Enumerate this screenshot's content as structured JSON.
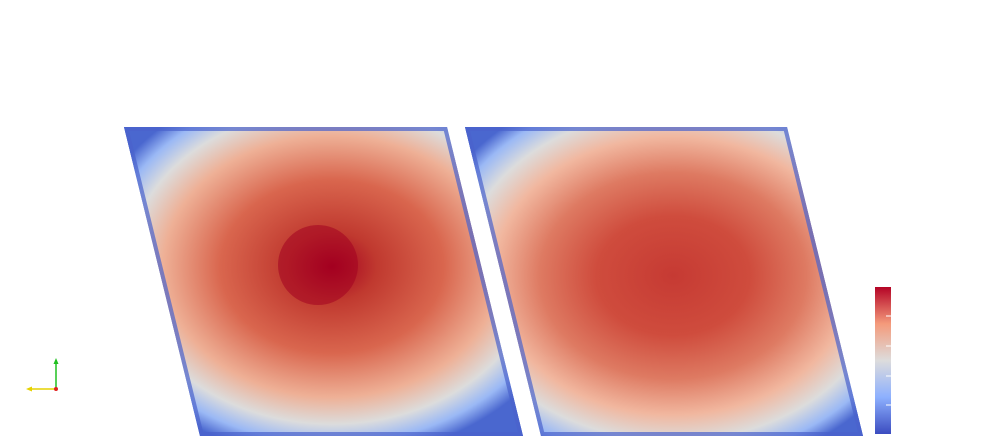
{
  "viewport": {
    "background": "#ffffff"
  },
  "colormap": {
    "name": "cool-to-warm",
    "stops": [
      "#3b4cc0",
      "#8db0fe",
      "#dddcdc",
      "#f49a7b",
      "#b40426"
    ]
  },
  "plots": [
    {
      "name": "left-field",
      "peak_color": "#b2001f",
      "mid_color": "#d6604d",
      "edge_color": "#3b5cc8"
    },
    {
      "name": "right-field",
      "peak_color": "#c53a33",
      "mid_color": "#dd7a63",
      "edge_color": "#3b5cc8"
    }
  ],
  "axes": {
    "x_color": "#e6d200",
    "y_color": "#20c020",
    "z_color": "#e02020"
  }
}
